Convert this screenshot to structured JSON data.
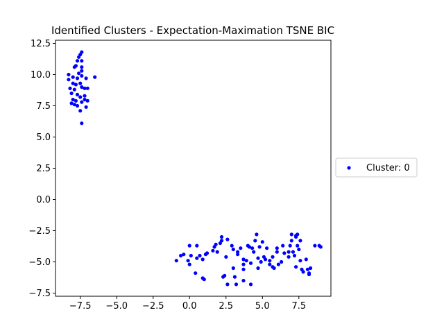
{
  "chart_data": {
    "type": "scatter",
    "title": "Identified Clusters - Expectation-Maximation TSNE BIC",
    "xlabel": "",
    "ylabel": "",
    "xlim": [
      -9.2,
      9.7
    ],
    "ylim": [
      -7.75,
      12.75
    ],
    "xticks": [
      {
        "value": -7.5,
        "label": "−7.5"
      },
      {
        "value": -5.0,
        "label": "−5.0"
      },
      {
        "value": -2.5,
        "label": "−2.5"
      },
      {
        "value": 0.0,
        "label": "0.0"
      },
      {
        "value": 2.5,
        "label": "2.5"
      },
      {
        "value": 5.0,
        "label": "5.0"
      },
      {
        "value": 7.5,
        "label": "7.5"
      }
    ],
    "yticks": [
      {
        "value": -7.5,
        "label": "−7.5"
      },
      {
        "value": -5.0,
        "label": "−5.0"
      },
      {
        "value": -2.5,
        "label": "−2.5"
      },
      {
        "value": 0.0,
        "label": "0.0"
      },
      {
        "value": 2.5,
        "label": "2.5"
      },
      {
        "value": 5.0,
        "label": "5.0"
      },
      {
        "value": 7.5,
        "label": "7.5"
      },
      {
        "value": 10.0,
        "label": "10.0"
      },
      {
        "value": 12.5,
        "label": "12.5"
      }
    ],
    "grid": false,
    "legend_position": "right",
    "series": [
      {
        "name": "Cluster: 0",
        "color": "#0000ff",
        "points": [
          [
            -7.4,
            11.8
          ],
          [
            -7.5,
            11.6
          ],
          [
            -7.6,
            11.4
          ],
          [
            -7.7,
            11.1
          ],
          [
            -7.4,
            11.1
          ],
          [
            -7.8,
            10.7
          ],
          [
            -7.9,
            10.6
          ],
          [
            -7.4,
            10.6
          ],
          [
            -8.3,
            10.0
          ],
          [
            -7.6,
            10.1
          ],
          [
            -7.4,
            10.3
          ],
          [
            -8.3,
            9.6
          ],
          [
            -8.0,
            9.8
          ],
          [
            -7.7,
            9.7
          ],
          [
            -7.4,
            9.9
          ],
          [
            -7.1,
            9.7
          ],
          [
            -6.5,
            9.8
          ],
          [
            -8.0,
            9.3
          ],
          [
            -7.8,
            9.2
          ],
          [
            -7.5,
            9.3
          ],
          [
            -8.2,
            8.9
          ],
          [
            -7.9,
            8.8
          ],
          [
            -7.4,
            9.0
          ],
          [
            -7.2,
            8.9
          ],
          [
            -7.0,
            8.9
          ],
          [
            -8.1,
            8.5
          ],
          [
            -7.7,
            8.4
          ],
          [
            -7.5,
            8.2
          ],
          [
            -7.2,
            8.3
          ],
          [
            -8.0,
            8.0
          ],
          [
            -7.8,
            7.9
          ],
          [
            -7.2,
            8.0
          ],
          [
            -7.0,
            7.9
          ],
          [
            -8.1,
            7.7
          ],
          [
            -7.9,
            7.6
          ],
          [
            -7.4,
            7.8
          ],
          [
            -7.7,
            7.5
          ],
          [
            -7.1,
            7.4
          ],
          [
            -7.5,
            7.1
          ],
          [
            -7.4,
            6.1
          ],
          [
            -0.9,
            -4.9
          ],
          [
            -0.6,
            -4.5
          ],
          [
            -0.4,
            -4.4
          ],
          [
            0.0,
            -3.7
          ],
          [
            0.1,
            -4.5
          ],
          [
            -0.1,
            -4.9
          ],
          [
            0.0,
            -5.2
          ],
          [
            0.4,
            -5.9
          ],
          [
            0.5,
            -3.7
          ],
          [
            0.5,
            -4.7
          ],
          [
            0.7,
            -4.5
          ],
          [
            0.9,
            -4.8
          ],
          [
            0.9,
            -6.3
          ],
          [
            1.0,
            -6.4
          ],
          [
            1.1,
            -4.4
          ],
          [
            1.2,
            -4.3
          ],
          [
            1.6,
            -4.1
          ],
          [
            1.7,
            -3.8
          ],
          [
            1.8,
            -3.6
          ],
          [
            1.9,
            -4.2
          ],
          [
            2.1,
            -3.5
          ],
          [
            2.2,
            -3.3
          ],
          [
            2.2,
            -3.0
          ],
          [
            2.3,
            -6.2
          ],
          [
            2.4,
            -6.1
          ],
          [
            2.5,
            -4.6
          ],
          [
            2.6,
            -3.2
          ],
          [
            2.6,
            -6.8
          ],
          [
            2.9,
            -3.7
          ],
          [
            3.0,
            -4.0
          ],
          [
            3.0,
            -5.5
          ],
          [
            3.1,
            -6.2
          ],
          [
            3.2,
            -6.8
          ],
          [
            3.3,
            -4.2
          ],
          [
            3.3,
            -4.4
          ],
          [
            3.5,
            -3.9
          ],
          [
            3.7,
            -4.8
          ],
          [
            3.7,
            -5.2
          ],
          [
            3.7,
            -5.6
          ],
          [
            3.7,
            -6.5
          ],
          [
            3.9,
            -4.9
          ],
          [
            4.0,
            -3.7
          ],
          [
            4.1,
            -3.8
          ],
          [
            4.2,
            -5.1
          ],
          [
            4.2,
            -6.8
          ],
          [
            4.3,
            -3.9
          ],
          [
            4.4,
            -4.2
          ],
          [
            4.5,
            -3.3
          ],
          [
            4.6,
            -2.8
          ],
          [
            4.7,
            -4.7
          ],
          [
            4.7,
            -5.5
          ],
          [
            4.8,
            -3.8
          ],
          [
            4.9,
            -5.0
          ],
          [
            5.0,
            -3.4
          ],
          [
            5.1,
            -4.6
          ],
          [
            5.2,
            -4.8
          ],
          [
            5.3,
            -3.9
          ],
          [
            5.5,
            -4.9
          ],
          [
            5.5,
            -5.2
          ],
          [
            5.7,
            -4.6
          ],
          [
            5.7,
            -5.4
          ],
          [
            5.8,
            -5.5
          ],
          [
            6.0,
            -3.9
          ],
          [
            6.0,
            -4.2
          ],
          [
            6.1,
            -5.2
          ],
          [
            6.3,
            -5.0
          ],
          [
            6.4,
            -3.7
          ],
          [
            6.5,
            -4.3
          ],
          [
            6.8,
            -4.2
          ],
          [
            6.8,
            -4.6
          ],
          [
            6.9,
            -3.7
          ],
          [
            7.0,
            -3.3
          ],
          [
            7.0,
            -2.8
          ],
          [
            7.1,
            -4.2
          ],
          [
            7.2,
            -4.5
          ],
          [
            7.3,
            -2.9
          ],
          [
            7.3,
            -3.0
          ],
          [
            7.3,
            -5.4
          ],
          [
            7.4,
            -3.7
          ],
          [
            7.4,
            -2.8
          ],
          [
            7.5,
            -4.0
          ],
          [
            7.6,
            -3.3
          ],
          [
            7.6,
            -4.9
          ],
          [
            7.7,
            -5.6
          ],
          [
            7.8,
            -5.8
          ],
          [
            8.0,
            -4.8
          ],
          [
            8.1,
            -5.6
          ],
          [
            8.2,
            -5.9
          ],
          [
            8.2,
            -6.0
          ],
          [
            8.3,
            -5.5
          ],
          [
            8.6,
            -3.7
          ],
          [
            8.9,
            -3.7
          ],
          [
            9.0,
            -3.8
          ]
        ]
      }
    ]
  }
}
